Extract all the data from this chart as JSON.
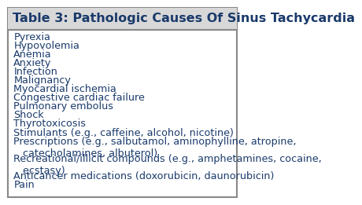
{
  "title": "Table 3: Pathologic Causes Of Sinus Tachycardia",
  "title_color": "#1a3a6b",
  "title_fontsize": 11.5,
  "title_bold": true,
  "body_fontsize": 9.2,
  "body_color": "#1a3a6b",
  "background_color": "#ffffff",
  "border_color": "#888888",
  "header_bg": "#d8d8d8",
  "rows": [
    "Pyrexia",
    "Hypovolemia",
    "Anemia",
    "Anxiety",
    "Infection",
    "Malignancy",
    "Myocardial ischemia",
    "Congestive cardiac failure",
    "Pulmonary embolus",
    "Shock",
    "Thyrotoxicosis",
    "Stimulants (e.g., caffeine, alcohol, nicotine)",
    "Prescriptions (e.g., salbutamol, aminophylline, atropine,\n   catecholamines, albuterol)",
    "Recreational/illicit compounds (e.g., amphetamines, cocaine,\n   ecstasy)",
    "Anticancer medications (doxorubicin, daunorubicin)",
    "Pain"
  ]
}
